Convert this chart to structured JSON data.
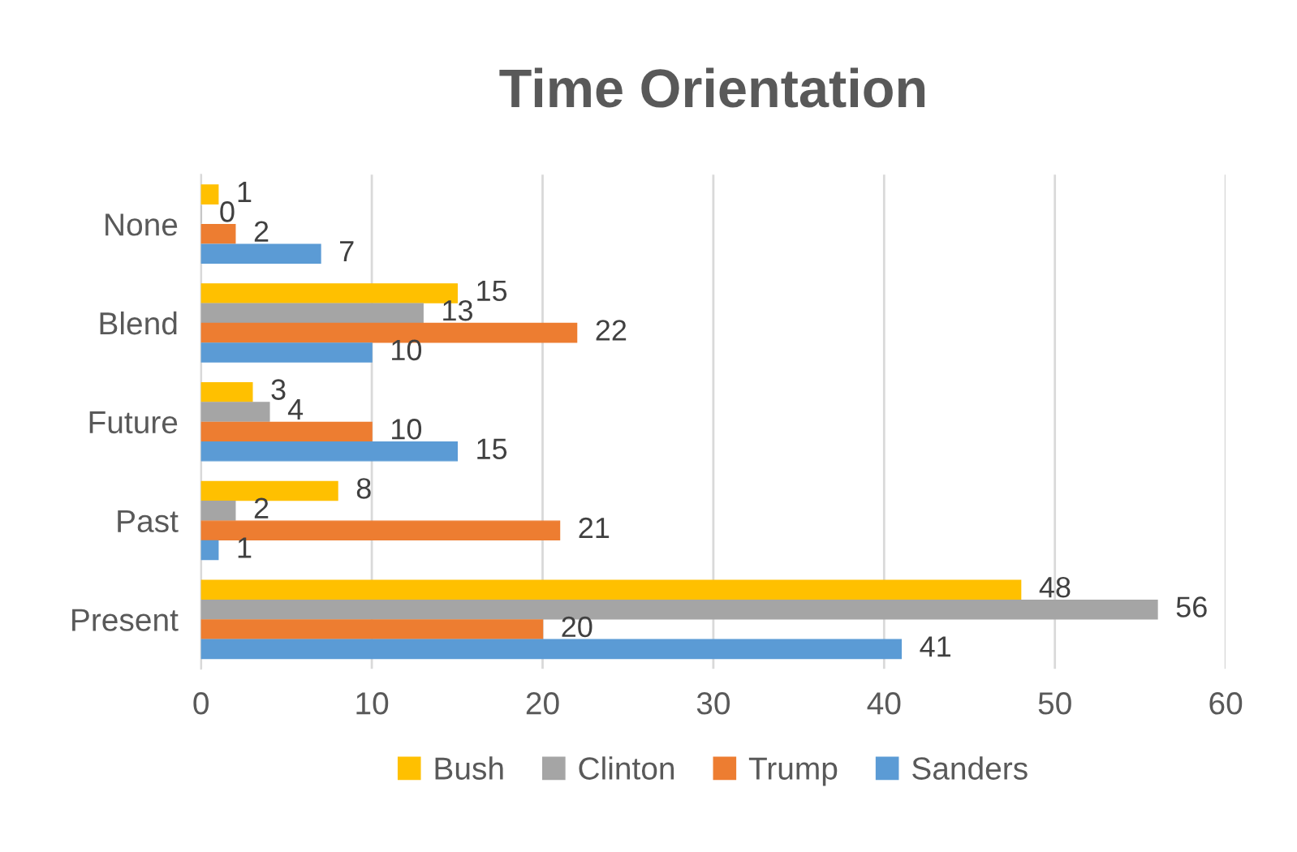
{
  "chart_data": {
    "type": "bar",
    "orientation": "horizontal",
    "title": "Time Orientation",
    "categories": [
      "None",
      "Blend",
      "Future",
      "Past",
      "Present"
    ],
    "series": [
      {
        "name": "Bush",
        "color": "#ffc000",
        "values": [
          1,
          15,
          3,
          8,
          48
        ]
      },
      {
        "name": "Clinton",
        "color": "#a5a5a5",
        "values": [
          0,
          13,
          4,
          2,
          56
        ]
      },
      {
        "name": "Trump",
        "color": "#ed7d31",
        "values": [
          2,
          22,
          10,
          21,
          20
        ]
      },
      {
        "name": "Sanders",
        "color": "#5b9bd5",
        "values": [
          7,
          10,
          15,
          1,
          41
        ]
      }
    ],
    "xlim": [
      0,
      60
    ],
    "xticks": [
      0,
      10,
      20,
      30,
      40,
      50,
      60
    ],
    "grid": "x",
    "legend": "bottom",
    "data_labels": true
  }
}
